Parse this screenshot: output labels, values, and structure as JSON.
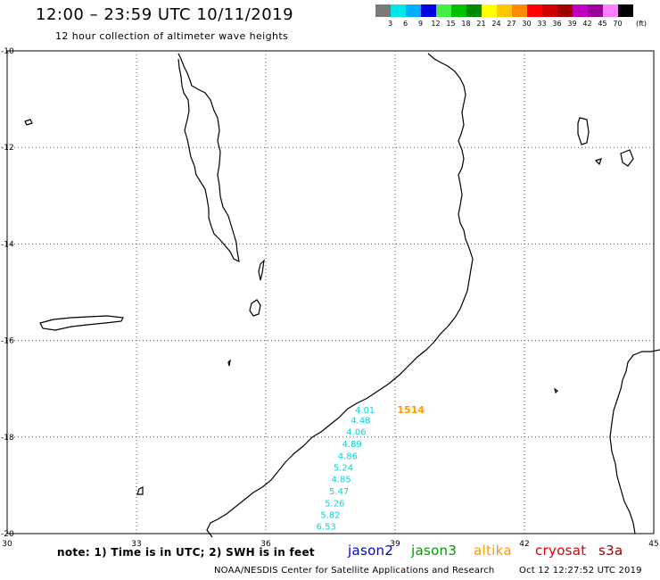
{
  "header": {
    "title": "12:00 – 23:59 UTC 10/11/2019",
    "subtitle": "12 hour collection of altimeter wave heights"
  },
  "scale": {
    "colors": [
      "#7a7a7a",
      "#00e5e5",
      "#00b0ff",
      "#0000e6",
      "#44ee44",
      "#00c000",
      "#008a00",
      "#ffff00",
      "#ffc800",
      "#ff8a00",
      "#ff0000",
      "#d20000",
      "#a00000",
      "#c000c0",
      "#9a009a",
      "#ff80ff",
      "#000000"
    ],
    "labels": [
      "3",
      "6",
      "9",
      "12",
      "15",
      "18",
      "21",
      "24",
      "27",
      "30",
      "33",
      "36",
      "39",
      "42",
      "45",
      "70"
    ],
    "unit": "(ft)"
  },
  "map": {
    "lon_labels": [
      "30",
      "33",
      "36",
      "39",
      "42",
      "45"
    ],
    "lat_labels": [
      "-10",
      "-12",
      "-14",
      "-16",
      "-18",
      "-20"
    ],
    "wave_heights": [
      {
        "value": "4.01",
        "lon": 38.3,
        "lat": -17.43
      },
      {
        "value": "4.48",
        "lon": 38.2,
        "lat": -17.64
      },
      {
        "value": "4.06",
        "lon": 38.1,
        "lat": -17.88
      },
      {
        "value": "4.89",
        "lon": 38.0,
        "lat": -18.13
      },
      {
        "value": "4.86",
        "lon": 37.9,
        "lat": -18.38
      },
      {
        "value": "5.24",
        "lon": 37.8,
        "lat": -18.62
      },
      {
        "value": "4.85",
        "lon": 37.75,
        "lat": -18.86
      },
      {
        "value": "5.47",
        "lon": 37.7,
        "lat": -19.11
      },
      {
        "value": "5.26",
        "lon": 37.6,
        "lat": -19.36
      },
      {
        "value": "5.82",
        "lon": 37.5,
        "lat": -19.6
      },
      {
        "value": "6.53",
        "lon": 37.4,
        "lat": -19.84
      }
    ],
    "wave_color": "#00d8d8",
    "time_tag": {
      "value": "1514",
      "lon": 39.05,
      "lat": -17.43,
      "color": "#ff9900"
    }
  },
  "footer": {
    "note": "note: 1) Time is in UTC; 2) SWH is in feet",
    "satellites": [
      {
        "name": "jason2",
        "color": "#0000dd"
      },
      {
        "name": "jason3",
        "color": "#009900"
      },
      {
        "name": "altika",
        "color": "#ff9900"
      },
      {
        "name": "cryosat",
        "color": "#dd0000"
      },
      {
        "name": "s3a",
        "color": "#990000"
      }
    ],
    "credit": "NOAA/NESDIS Center for Satellite Applications and Research",
    "stamp": "Oct 12 12:27:52 UTC 2019"
  }
}
